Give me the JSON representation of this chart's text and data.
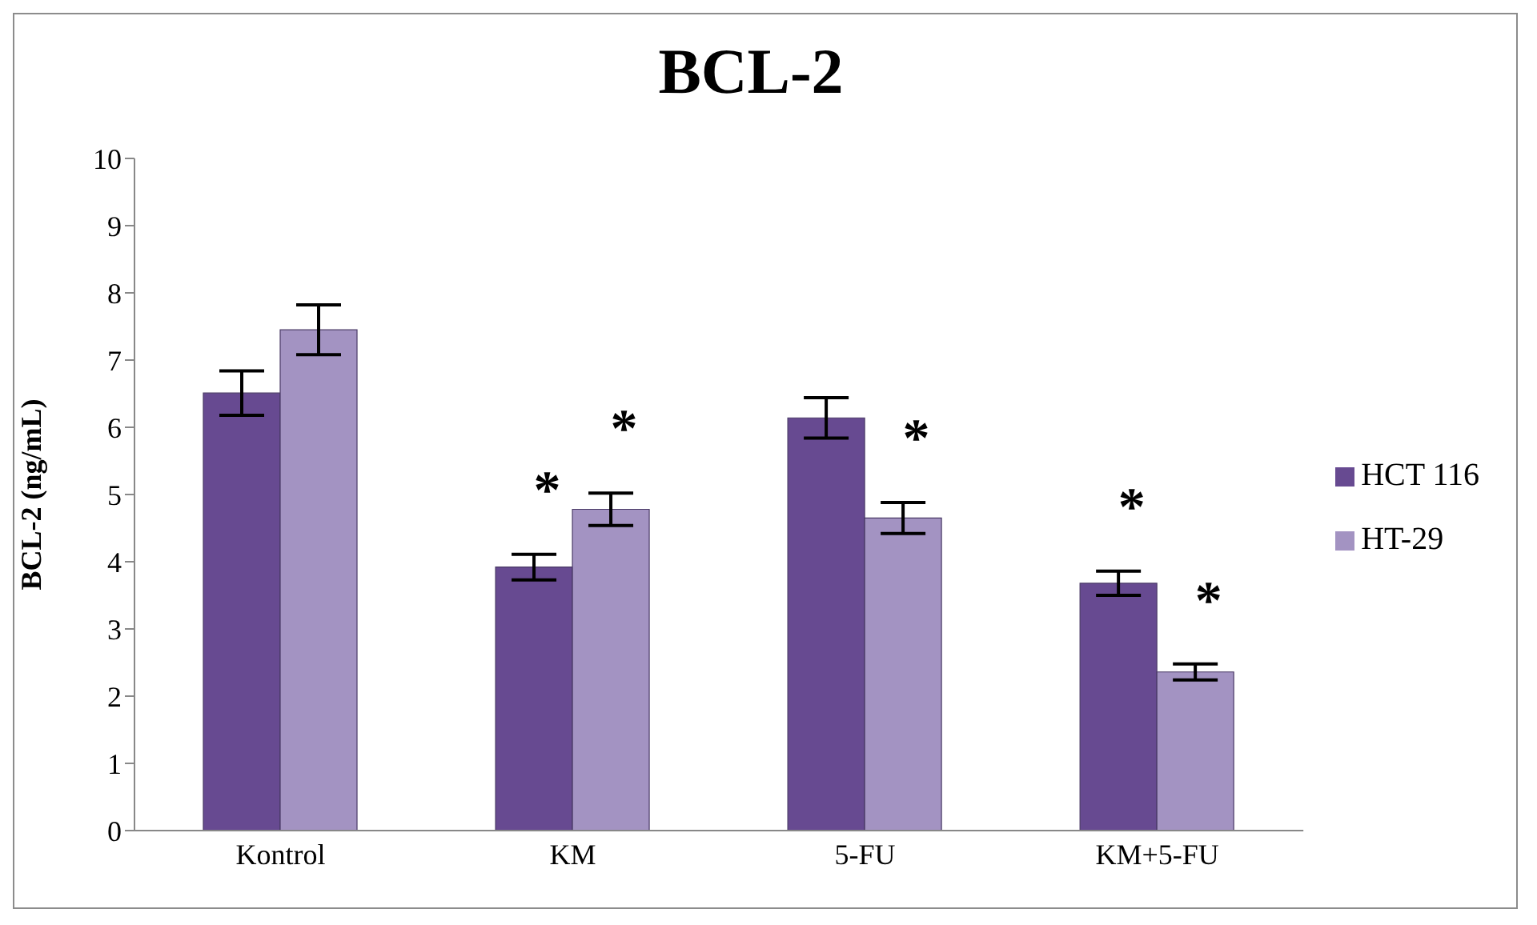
{
  "chart_data": {
    "type": "bar",
    "title": "BCL-2",
    "ylabel": "BCL-2 (ng/mL)",
    "categories": [
      "Kontrol",
      "KM",
      "5-FU",
      "KM+5-FU"
    ],
    "series": [
      {
        "name": "HCT 116",
        "color": "#674a91",
        "values": [
          6.51,
          3.92,
          6.14,
          3.68
        ],
        "errors": [
          0.33,
          0.19,
          0.3,
          0.18
        ]
      },
      {
        "name": "HT-29",
        "color": "#a393c2",
        "values": [
          7.45,
          4.78,
          4.65,
          2.36
        ],
        "errors": [
          0.37,
          0.24,
          0.23,
          0.12
        ]
      }
    ],
    "ylim": [
      0,
      10
    ],
    "yticks": [
      0,
      1,
      2,
      3,
      4,
      5,
      6,
      7,
      8,
      9,
      10
    ],
    "grid": false,
    "legend": "right",
    "annotations": [
      {
        "text": "*",
        "x": "KM",
        "y": 3.92
      },
      {
        "text": "*",
        "x": "KM",
        "y": 4.78
      },
      {
        "text": "*",
        "x": "5-FU",
        "y": 4.65
      },
      {
        "text": "*",
        "x": "KM+5-FU",
        "y": 3.68
      },
      {
        "text": "*",
        "x": "KM+5-FU",
        "y": 2.36
      }
    ]
  }
}
